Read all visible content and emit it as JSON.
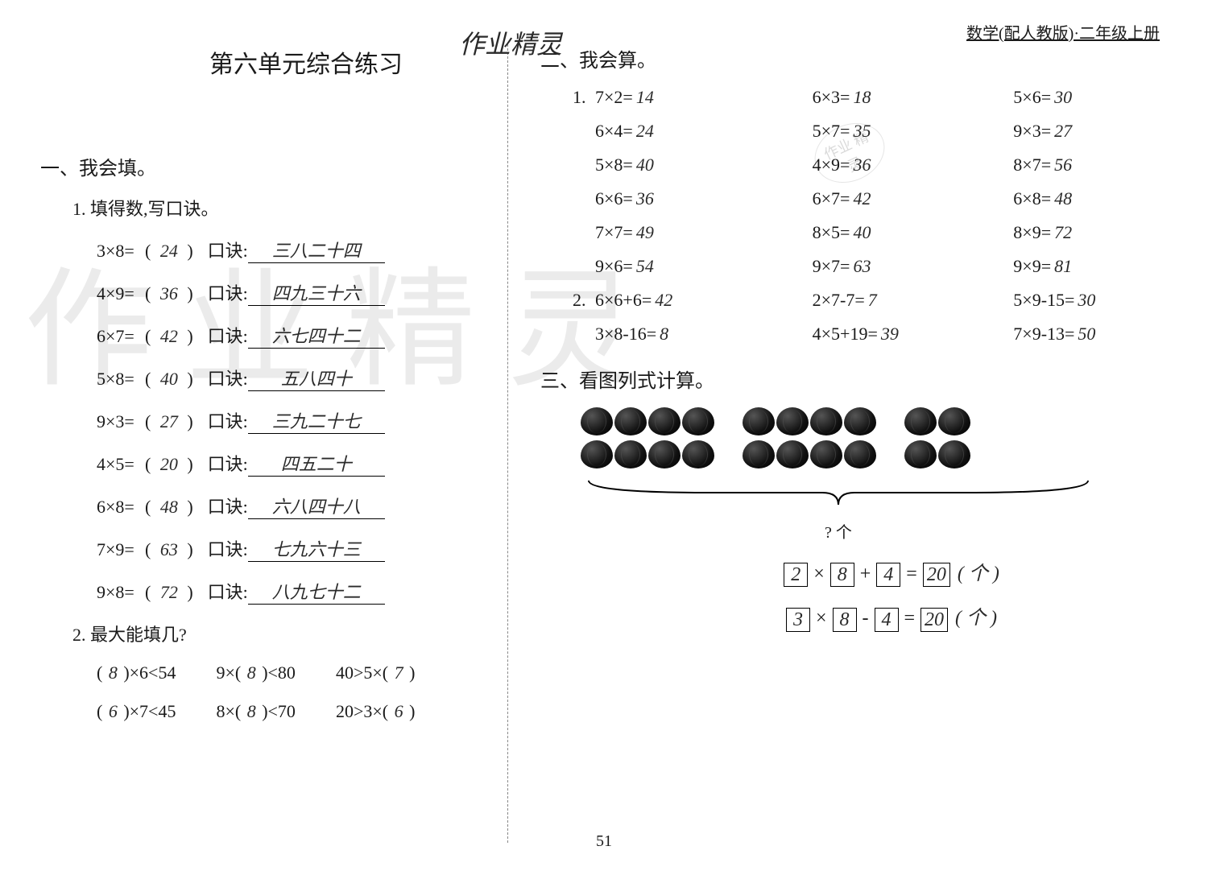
{
  "header": {
    "top_watermark": "作业精灵",
    "right_text": "数学(配人教版)·二年级上册",
    "big_watermark": "作业精灵",
    "stamp_text": "作业\n精灵"
  },
  "left": {
    "unit_title": "第六单元综合练习",
    "section1_title": "一、我会填。",
    "q1_title": "1. 填得数,写口诀。",
    "q1_rows": [
      {
        "eq": "3×8=",
        "ans": "24",
        "label": "口诀:",
        "koujue": "三八二十四"
      },
      {
        "eq": "4×9=",
        "ans": "36",
        "label": "口诀:",
        "koujue": "四九三十六"
      },
      {
        "eq": "6×7=",
        "ans": "42",
        "label": "口诀:",
        "koujue": "六七四十二"
      },
      {
        "eq": "5×8=",
        "ans": "40",
        "label": "口诀:",
        "koujue": "五八四十"
      },
      {
        "eq": "9×3=",
        "ans": "27",
        "label": "口诀:",
        "koujue": "三九二十七"
      },
      {
        "eq": "4×5=",
        "ans": "20",
        "label": "口诀:",
        "koujue": "四五二十"
      },
      {
        "eq": "6×8=",
        "ans": "48",
        "label": "口诀:",
        "koujue": "六八四十八"
      },
      {
        "eq": "7×9=",
        "ans": "63",
        "label": "口诀:",
        "koujue": "七九六十三"
      },
      {
        "eq": "9×8=",
        "ans": "72",
        "label": "口诀:",
        "koujue": "八九七十二"
      }
    ],
    "q2_title": "2. 最大能填几?",
    "q2_rows": [
      [
        {
          "pre": "(",
          "ans": "8",
          "post": ")×6<54"
        },
        {
          "pre": "9×(",
          "ans": "8",
          "post": ")<80"
        },
        {
          "pre": "40>5×(",
          "ans": "7",
          "post": ")"
        }
      ],
      [
        {
          "pre": "(",
          "ans": "6",
          "post": ")×7<45"
        },
        {
          "pre": "8×(",
          "ans": "8",
          "post": ")<70"
        },
        {
          "pre": "20>3×(",
          "ans": "6",
          "post": ")"
        }
      ]
    ]
  },
  "right": {
    "section2_title": "二、我会算。",
    "calc_rows": [
      {
        "num": "1.",
        "c1": {
          "q": "7×2=",
          "a": "14"
        },
        "c2": {
          "q": "6×3=",
          "a": "18"
        },
        "c3": {
          "q": "5×6=",
          "a": "30"
        }
      },
      {
        "num": "",
        "c1": {
          "q": "6×4=",
          "a": "24"
        },
        "c2": {
          "q": "5×7=",
          "a": "35"
        },
        "c3": {
          "q": "9×3=",
          "a": "27"
        }
      },
      {
        "num": "",
        "c1": {
          "q": "5×8=",
          "a": "40"
        },
        "c2": {
          "q": "4×9=",
          "a": "36"
        },
        "c3": {
          "q": "8×7=",
          "a": "56"
        }
      },
      {
        "num": "",
        "c1": {
          "q": "6×6=",
          "a": "36"
        },
        "c2": {
          "q": "6×7=",
          "a": "42"
        },
        "c3": {
          "q": "6×8=",
          "a": "48"
        }
      },
      {
        "num": "",
        "c1": {
          "q": "7×7=",
          "a": "49"
        },
        "c2": {
          "q": "8×5=",
          "a": "40"
        },
        "c3": {
          "q": "8×9=",
          "a": "72"
        }
      },
      {
        "num": "",
        "c1": {
          "q": "9×6=",
          "a": "54"
        },
        "c2": {
          "q": "9×7=",
          "a": "63"
        },
        "c3": {
          "q": "9×9=",
          "a": "81"
        }
      },
      {
        "num": "2.",
        "c1": {
          "q": "6×6+6=",
          "a": "42"
        },
        "c2": {
          "q": "2×7-7=",
          "a": "7"
        },
        "c3": {
          "q": "5×9-15=",
          "a": "30"
        }
      },
      {
        "num": "",
        "c1": {
          "q": "3×8-16=",
          "a": "8"
        },
        "c2": {
          "q": "4×5+19=",
          "a": "39"
        },
        "c3": {
          "q": "7×9-13=",
          "a": "50"
        }
      }
    ],
    "section3_title": "三、看图列式计算。",
    "melon_groups": [
      {
        "rows": 2,
        "cols": 4
      },
      {
        "rows": 2,
        "cols": 4
      },
      {
        "rows": 2,
        "cols": 2
      }
    ],
    "brace_label": "? 个",
    "eq_lines": [
      {
        "boxes": [
          "2",
          "×",
          "8",
          "+",
          "4",
          "=",
          "20"
        ],
        "unit": "( 个 )"
      },
      {
        "boxes": [
          "3",
          "×",
          "8",
          "-",
          "4",
          "=",
          "20"
        ],
        "unit": "( 个 )"
      }
    ]
  },
  "page_number": "51",
  "colors": {
    "text": "#1a1a1a",
    "bg": "#ffffff",
    "watermark": "rgba(0,0,0,0.08)"
  }
}
